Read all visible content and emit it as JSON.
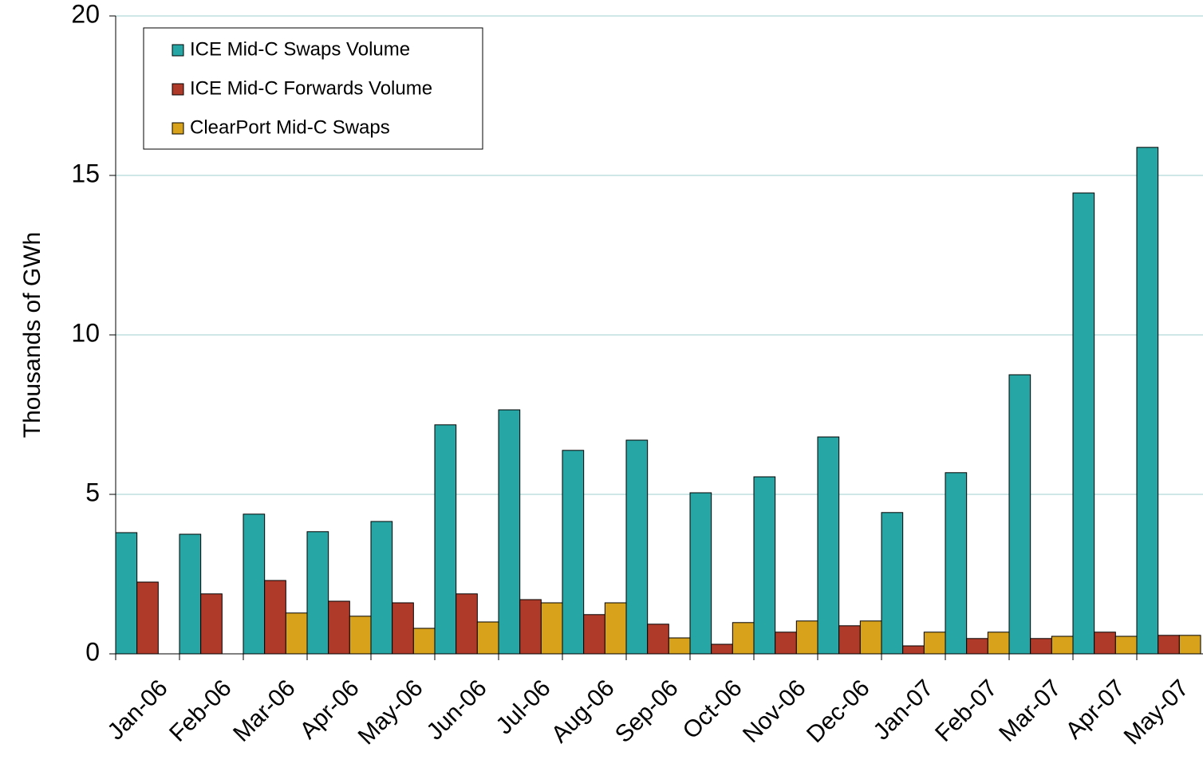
{
  "chart_data": {
    "type": "bar",
    "y_label": "Thousands of GWh",
    "categories": [
      "Jan-06",
      "Feb-06",
      "Mar-06",
      "Apr-06",
      "May-06",
      "Jun-06",
      "Jul-06",
      "Aug-06",
      "Sep-06",
      "Oct-06",
      "Nov-06",
      "Dec-06",
      "Jan-07",
      "Feb-07",
      "Mar-07",
      "Apr-07",
      "May-07"
    ],
    "series": [
      {
        "name": "ICE Mid-C Swaps Volume",
        "color": "#26a6a4",
        "values": [
          3.8,
          3.75,
          4.38,
          3.83,
          4.15,
          7.18,
          7.65,
          6.38,
          6.7,
          5.05,
          5.55,
          6.8,
          4.43,
          5.68,
          8.75,
          14.45,
          15.88
        ]
      },
      {
        "name": "ICE Mid-C Forwards Volume",
        "color": "#b03a2a",
        "values": [
          2.25,
          1.88,
          2.3,
          1.65,
          1.6,
          1.88,
          1.7,
          1.23,
          0.93,
          0.3,
          0.68,
          0.88,
          0.25,
          0.48,
          0.48,
          0.68,
          0.58
        ]
      },
      {
        "name": "ClearPort Mid-C Swaps",
        "color": "#d9a21b",
        "values": [
          null,
          null,
          1.28,
          1.18,
          0.8,
          1.0,
          1.6,
          1.6,
          0.5,
          0.98,
          1.03,
          1.03,
          0.68,
          0.68,
          0.55,
          0.55,
          0.58
        ]
      }
    ],
    "ylim": [
      0,
      20
    ],
    "yticks": [
      0,
      5,
      10,
      15,
      20
    ],
    "grid": true,
    "legend": "top-left"
  }
}
